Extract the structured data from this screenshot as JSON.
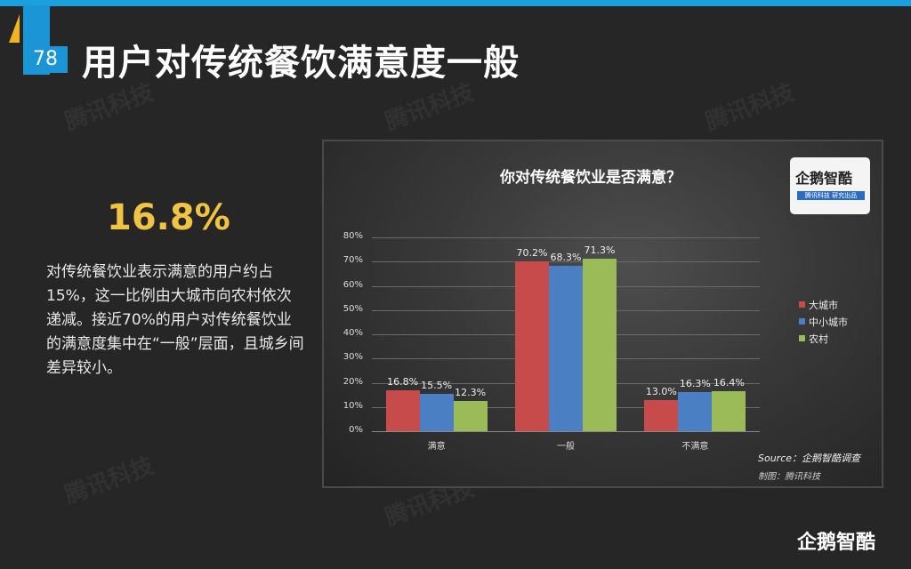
{
  "header": {
    "page_number": "78",
    "title": "用户对传统餐饮满意度一般"
  },
  "highlight": {
    "stat": "16.8%",
    "description": "对传统餐饮业表示满意的用户约占15%，这一比例由大城市向农村依次递减。接近70%的用户对传统餐饮业的满意度集中在“一般”层面，且城乡间差异较小。"
  },
  "watermark_text": "腾讯科技",
  "chart_panel": {
    "logo_main": "企鹅智酷",
    "logo_sub": "腾讯科技 研究出品",
    "source": "Source：企鹅智酷调查",
    "credit": "制图：腾讯科技"
  },
  "brand_footer": "企鹅智酷",
  "chart_data": {
    "type": "bar",
    "title": "你对传统餐饮业是否满意？",
    "categories": [
      "满意",
      "一般",
      "不满意"
    ],
    "series": [
      {
        "name": "大城市",
        "color": "#c84b4b",
        "values": [
          16.8,
          70.2,
          13.0
        ],
        "labels": [
          "16.8%",
          "70.2%",
          "13.0%"
        ]
      },
      {
        "name": "中小城市",
        "color": "#4a7fc4",
        "values": [
          15.5,
          68.3,
          16.3
        ],
        "labels": [
          "15.5%",
          "68.3%",
          "16.3%"
        ]
      },
      {
        "name": "农村",
        "color": "#9bbb59",
        "values": [
          12.3,
          71.3,
          16.4
        ],
        "labels": [
          "12.3%",
          "71.3%",
          "16.4%"
        ]
      }
    ],
    "yticks": [
      "0%",
      "10%",
      "20%",
      "30%",
      "40%",
      "50%",
      "60%",
      "70%",
      "80%"
    ],
    "ylim": [
      0,
      80
    ],
    "xlabel": "",
    "ylabel": "",
    "grid": true,
    "legend_position": "right"
  }
}
